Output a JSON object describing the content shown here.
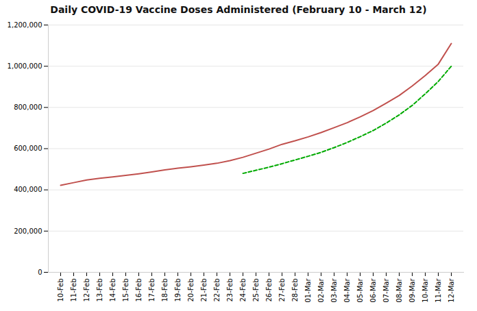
{
  "chart_data": {
    "type": "line",
    "title": "Daily COVID-19 Vaccine Doses Administered (February 10 - March 12)",
    "categories": [
      "10-Feb",
      "11-Feb",
      "12-Feb",
      "13-Feb",
      "14-Feb",
      "15-Feb",
      "16-Feb",
      "17-Feb",
      "18-Feb",
      "19-Feb",
      "20-Feb",
      "21-Feb",
      "22-Feb",
      "23-Feb",
      "24-Feb",
      "25-Feb",
      "26-Feb",
      "27-Feb",
      "28-Feb",
      "01-Mar",
      "02-Mar",
      "03-Mar",
      "04-Mar",
      "05-Mar",
      "06-Mar",
      "07-Mar",
      "08-Mar",
      "09-Mar",
      "10-Mar",
      "11-Mar",
      "12-Mar"
    ],
    "series": [
      {
        "color": "#c0504d",
        "line_style": "solid",
        "values": [
          422000,
          435000,
          448000,
          456000,
          463000,
          470000,
          478000,
          487000,
          497000,
          505000,
          512000,
          520000,
          529000,
          542000,
          558000,
          578000,
          598000,
          621000,
          638000,
          657000,
          678000,
          702000,
          726000,
          754000,
          785000,
          821000,
          858000,
          904000,
          955000,
          1010000,
          1110000
        ]
      },
      {
        "color": "#00AA00",
        "line_style": "dashed",
        "values": [
          null,
          null,
          null,
          null,
          null,
          null,
          null,
          null,
          null,
          null,
          null,
          null,
          null,
          null,
          480000,
          495000,
          510000,
          527000,
          545000,
          563000,
          582000,
          605000,
          630000,
          658000,
          688000,
          724000,
          764000,
          810000,
          866000,
          926000,
          1000000
        ]
      }
    ],
    "ylim": [
      0,
      1200000
    ],
    "yticks": [
      0,
      {
        "value": 200000,
        "label": "200,000"
      },
      {
        "value": 400000,
        "label": "400,000"
      },
      {
        "value": 600000,
        "label": "600,000"
      },
      {
        "value": 800000,
        "label": "800,000"
      },
      {
        "value": 1000000,
        "label": "1,000,000"
      },
      {
        "value": 1200000,
        "label": "1,200,000"
      }
    ],
    "grid": true
  }
}
